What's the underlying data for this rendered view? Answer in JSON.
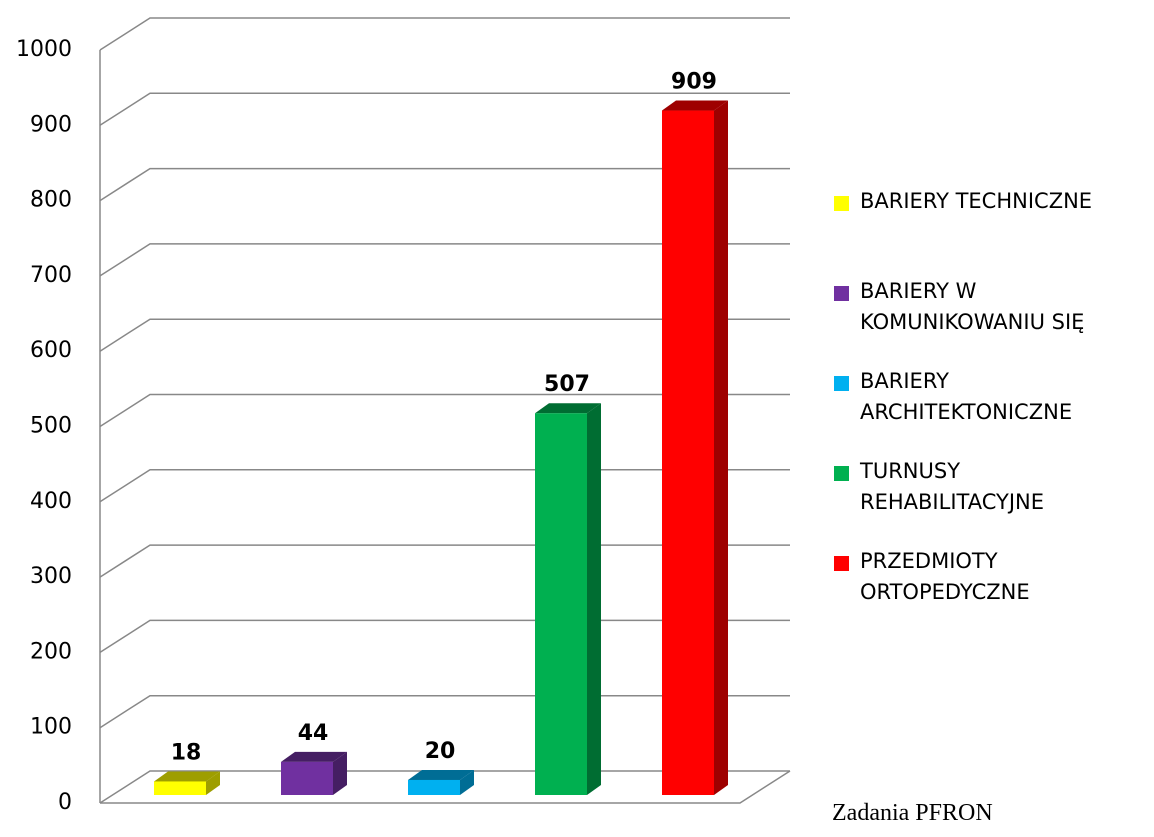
{
  "chart_data": {
    "type": "bar",
    "categories": [
      "BARIERY TECHNICZNE",
      "BARIERY W KOMUNIKOWANIU SIĘ",
      "BARIERY ARCHITEKTONICZNE",
      "TURNUSY REHABILITACYJNE",
      "PRZEDMIOTY ORTOPEDYCZNE"
    ],
    "values": [
      18,
      44,
      20,
      507,
      909
    ],
    "colors": [
      "#ffff00",
      "#7030a0",
      "#00b0f0",
      "#00b050",
      "#ff0000"
    ],
    "ylim": [
      0,
      1000
    ],
    "yticks": [
      0,
      100,
      200,
      300,
      400,
      500,
      600,
      700,
      800,
      900,
      1000
    ],
    "grid": true,
    "legend": "right",
    "caption": "Zadania PFRON"
  }
}
